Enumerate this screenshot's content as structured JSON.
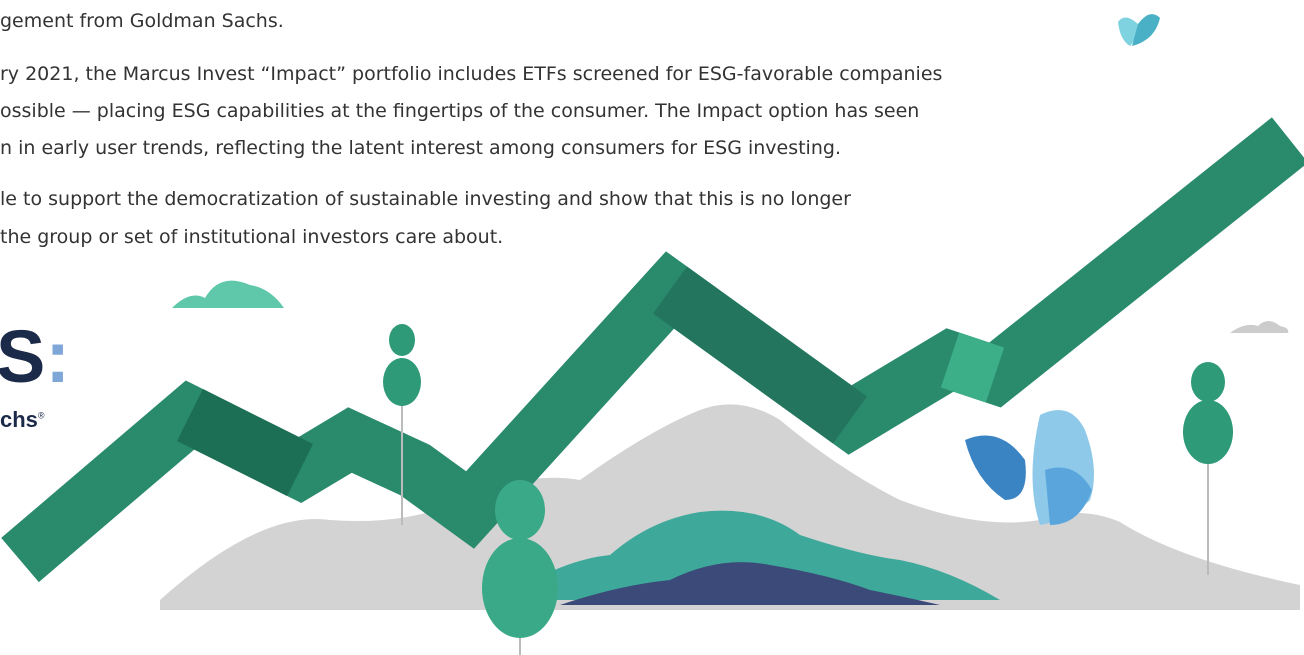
{
  "article": {
    "intro_line": "gement from Goldman Sachs.",
    "paragraphs": [
      [
        "ry 2021, the Marcus Invest “Impact” portfolio includes ETFs screened for ESG-favorable companies",
        "ossible — placing ESG capabilities at the fingertips of the consumer. The Impact option has seen",
        "n in early user trends, reflecting the latent interest among consumers for ESG investing."
      ],
      [
        "le to support the democratization of sustainable investing and show that this is no longer",
        "the group or set of institutional investors care about."
      ]
    ]
  },
  "logo": {
    "mark": "S",
    "colon": ":",
    "brand": "chs",
    "registered": "®"
  }
}
